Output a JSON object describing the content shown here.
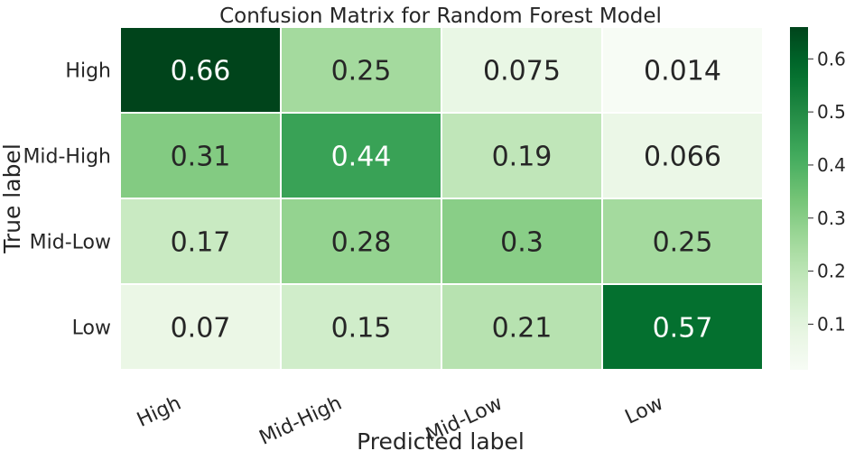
{
  "chart_data": {
    "type": "heatmap",
    "title": "Confusion Matrix for Random Forest Model",
    "xlabel": "Predicted label",
    "ylabel": "True label",
    "x_categories": [
      "High",
      "Mid-High",
      "Mid-Low",
      "Low"
    ],
    "y_categories": [
      "High",
      "Mid-High",
      "Mid-Low",
      "Low"
    ],
    "values": [
      [
        0.66,
        0.25,
        0.075,
        0.014
      ],
      [
        0.31,
        0.44,
        0.19,
        0.066
      ],
      [
        0.17,
        0.28,
        0.3,
        0.25
      ],
      [
        0.07,
        0.15,
        0.21,
        0.57
      ]
    ],
    "labels": [
      [
        "0.66",
        "0.25",
        "0.075",
        "0.014"
      ],
      [
        "0.31",
        "0.44",
        "0.19",
        "0.066"
      ],
      [
        "0.17",
        "0.28",
        "0.3",
        "0.25"
      ],
      [
        "0.07",
        "0.15",
        "0.21",
        "0.57"
      ]
    ],
    "colormap": "Greens",
    "colorbar": {
      "vmin": 0.014,
      "vmax": 0.66,
      "ticks": [
        0.1,
        0.2,
        0.3,
        0.4,
        0.5,
        0.6
      ],
      "tick_labels": [
        "0.1",
        "0.2",
        "0.3",
        "0.4",
        "0.5",
        "0.6"
      ]
    },
    "grid": false
  }
}
